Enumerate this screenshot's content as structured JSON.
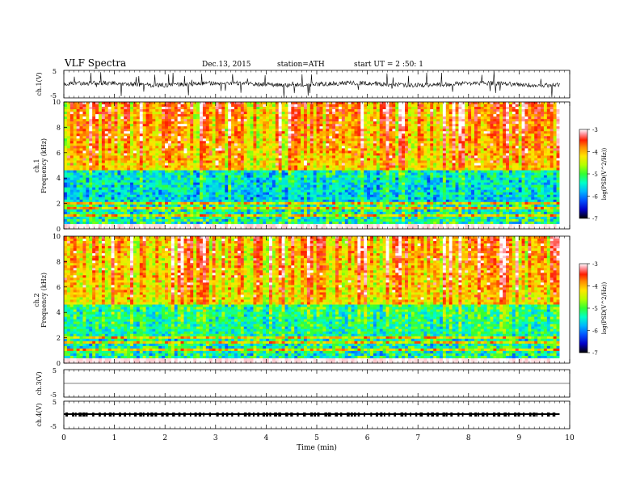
{
  "header": {
    "title": "VLF  Spectra",
    "date": "Dec.13, 2015",
    "station": "station=ATH",
    "start": "start  UT  =   2  :50: 1"
  },
  "chart_data": [
    {
      "type": "line",
      "panel": "ch1-waveform",
      "ylabel": "ch.1(V)",
      "yticks": [
        "5",
        "-5"
      ],
      "ylim": [
        -5,
        5
      ],
      "xlim": [
        0,
        10
      ]
    },
    {
      "type": "heatmap",
      "panel": "ch1-spectrogram",
      "ylabel": "ch.1\nFrequency (kHz)",
      "ylabel_lines": [
        "ch.1",
        "Frequency (kHz)"
      ],
      "yticks": [
        "0",
        "2",
        "4",
        "6",
        "8",
        "10"
      ],
      "ylim": [
        0,
        10
      ],
      "xlim": [
        0,
        9.8
      ],
      "colorbar": {
        "label": "log(PSD(V^2/Hz))",
        "ticks": [
          "-3",
          "-4",
          "-5",
          "-6",
          "-7"
        ],
        "range": [
          -7,
          -3
        ]
      }
    },
    {
      "type": "heatmap",
      "panel": "ch2-spectrogram",
      "ylabel": "ch.2\nFrequency (kHz)",
      "ylabel_lines": [
        "ch.2",
        "Frequency (kHz)"
      ],
      "yticks": [
        "0",
        "2",
        "4",
        "6",
        "8",
        "10"
      ],
      "ylim": [
        0,
        10
      ],
      "xlim": [
        0,
        9.8
      ],
      "colorbar": {
        "label": "log(PSD(V^2/Hz))",
        "ticks": [
          "-3",
          "-4",
          "-5",
          "-6",
          "-7"
        ],
        "range": [
          -7,
          -3
        ]
      }
    },
    {
      "type": "line",
      "panel": "ch3-waveform",
      "ylabel": "ch.3(V)",
      "yticks": [
        "5",
        "-5"
      ],
      "ylim": [
        -5,
        5
      ],
      "xlim": [
        0,
        10
      ]
    },
    {
      "type": "line",
      "panel": "ch4-waveform",
      "ylabel": "ch.4(V)",
      "yticks": [
        "5",
        "-5"
      ],
      "ylim": [
        -5,
        5
      ],
      "xlim": [
        0,
        10
      ],
      "xlabel": "Time  (min)",
      "xticks": [
        "0",
        "1",
        "2",
        "3",
        "4",
        "5",
        "6",
        "7",
        "8",
        "9",
        "10"
      ]
    }
  ],
  "colors": {
    "colormap": [
      "#000000",
      "#0000c8",
      "#0050ff",
      "#00b4ff",
      "#00ffc8",
      "#32ff32",
      "#b4ff00",
      "#ffe600",
      "#ff8c00",
      "#ff1e00",
      "#ff96a0",
      "#ffffff"
    ],
    "trace": "#000000"
  }
}
